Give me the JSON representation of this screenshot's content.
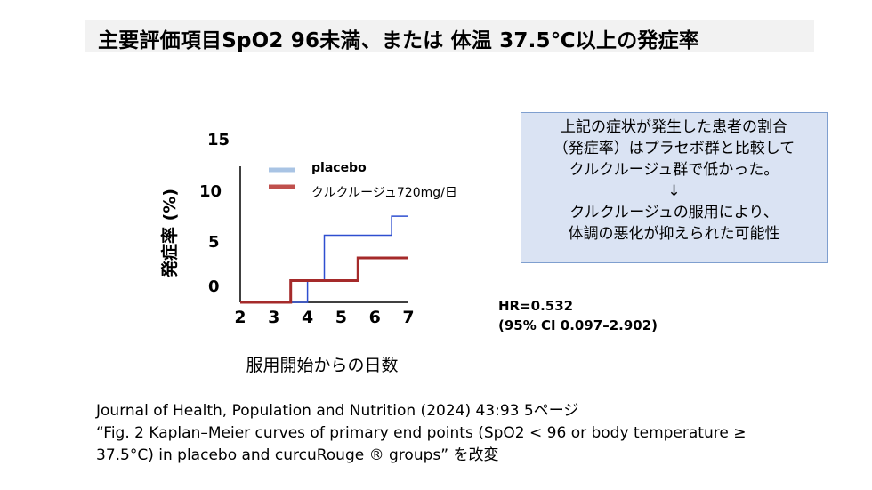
{
  "title": "主要評価項目SpO2 96未満、または 体温 37.5℃以上の発症率",
  "chart_data": {
    "type": "line",
    "step": true,
    "xlabel": "服用開始からの日数",
    "ylabel": "発症率 (%)",
    "x_ticks": [
      "2",
      "3",
      "4",
      "5",
      "6",
      "7"
    ],
    "y_ticks": [
      "0",
      "5",
      "10",
      "15"
    ],
    "xlim": [
      2,
      7
    ],
    "ylim": [
      0,
      15
    ],
    "legend_position": "top-left",
    "series": [
      {
        "name": "placebo",
        "color": "#2e4fd0",
        "legend_color": "#a9c4e4",
        "x": [
          2,
          4,
          4,
          4.5,
          4.5,
          6.5,
          6.5,
          7
        ],
        "y": [
          0,
          0,
          2.4,
          2.4,
          7.4,
          7.4,
          9.5,
          9.5
        ]
      },
      {
        "name": "クルクルージュ720mg/日",
        "color": "#a52a2a",
        "legend_color": "#c0504d",
        "x": [
          2,
          3.5,
          3.5,
          5.5,
          5.5,
          7
        ],
        "y": [
          0,
          0,
          2.4,
          2.4,
          4.9,
          4.9
        ]
      }
    ]
  },
  "note": {
    "lines": [
      "上記の症状が発生した患者の割合",
      "（発症率）はプラセボ群と比較して",
      "クルクルージュ群で低かった。",
      "↓",
      "クルクルージュの服用により、",
      "体調の悪化が抑えられた可能性"
    ]
  },
  "stats": {
    "hr": "HR=0.532",
    "ci": "(95% CI 0.097–2.902)"
  },
  "citation": {
    "line1": "Journal of Health, Population and Nutrition (2024) 43:93 5ページ",
    "line2": "“Fig. 2 Kaplan–Meier curves of primary end points (SpO2 < 96 or body temperature ≥",
    "line3": "37.5°C) in placebo and curcuRouge ® groups” を改変"
  }
}
